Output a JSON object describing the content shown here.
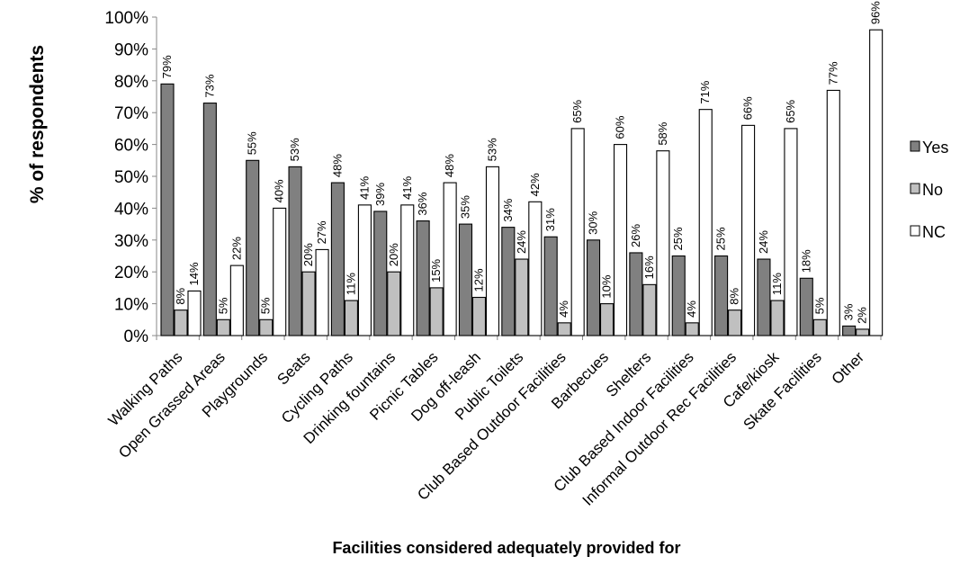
{
  "chart_data": {
    "type": "bar",
    "title": "",
    "xlabel": "Facilities considered adequately provided for",
    "ylabel": "% of respondents",
    "ylim": [
      0,
      100
    ],
    "yticks": [
      "0%",
      "10%",
      "20%",
      "30%",
      "40%",
      "50%",
      "60%",
      "70%",
      "80%",
      "90%",
      "100%"
    ],
    "grid": false,
    "legend_position": "right",
    "categories": [
      "Walking Paths",
      "Open Grassed Areas",
      "Playgrounds",
      "Seats",
      "Cycling Paths",
      "Drinking fountains",
      "Picnic Tables",
      "Dog off-leash",
      "Public Toilets",
      "Club Based Outdoor Facilities",
      "Barbecues",
      "Shelters",
      "Club Based Indoor Facilities",
      "Informal Outdoor Rec Facilities",
      "Cafe/kiosk",
      "Skate Facilities",
      "Other"
    ],
    "series": [
      {
        "name": "Yes",
        "color": "#808080",
        "values": [
          79,
          73,
          55,
          53,
          48,
          39,
          36,
          35,
          34,
          31,
          30,
          26,
          25,
          25,
          24,
          18,
          3
        ],
        "labels": [
          "79%",
          "73%",
          "55%",
          "53%",
          "48%",
          "39%",
          "36%",
          "35%",
          "34%",
          "31%",
          "30%",
          "26%",
          "25%",
          "25%",
          "24%",
          "18%",
          "3%"
        ]
      },
      {
        "name": "No",
        "color": "#c0c0c0",
        "values": [
          8,
          5,
          5,
          20,
          11,
          20,
          15,
          12,
          24,
          4,
          10,
          16,
          4,
          8,
          11,
          5,
          2
        ],
        "labels": [
          "8%",
          "5%",
          "5%",
          "20%",
          "11%",
          "20%",
          "15%",
          "12%",
          "24%",
          "4%",
          "10%",
          "16%",
          "4%",
          "8%",
          "11%",
          "5%",
          "2%"
        ]
      },
      {
        "name": "NC",
        "color": "#ffffff",
        "values": [
          14,
          22,
          40,
          27,
          41,
          41,
          48,
          53,
          42,
          65,
          60,
          58,
          71,
          66,
          65,
          77,
          96
        ],
        "labels": [
          "14%",
          "22%",
          "40%",
          "27%",
          "41%",
          "41%",
          "48%",
          "53%",
          "42%",
          "65%",
          "60%",
          "58%",
          "71%",
          "66%",
          "65%",
          "77%",
          "96%"
        ]
      }
    ]
  }
}
